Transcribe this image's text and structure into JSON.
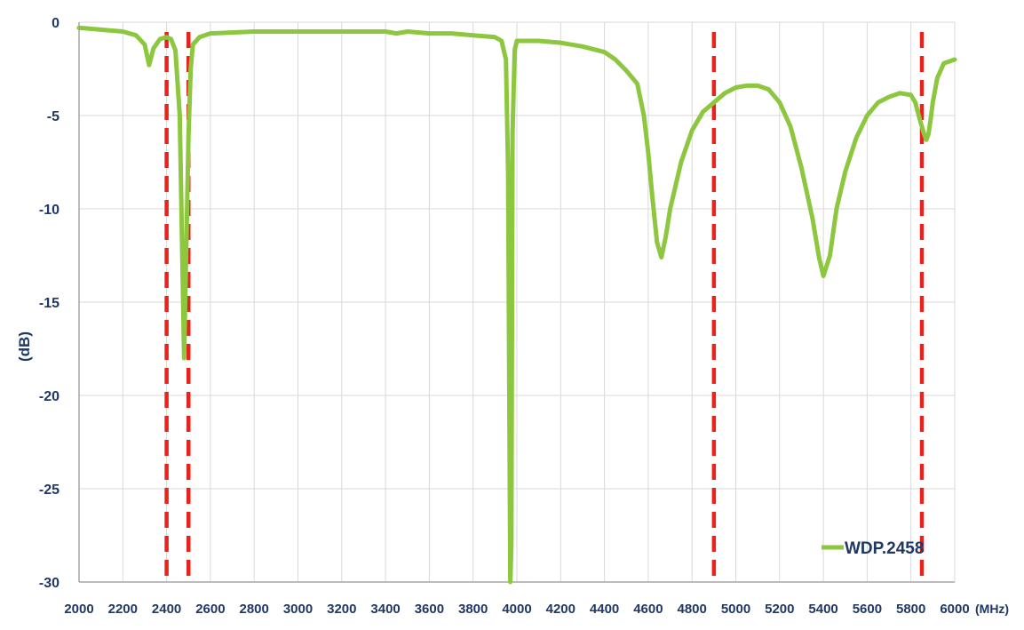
{
  "chart_data": {
    "type": "line",
    "xlabel": "(MHz)",
    "ylabel": "(dB)",
    "xlim": [
      2000,
      6000
    ],
    "ylim": [
      -30,
      0
    ],
    "x_ticks": [
      2000,
      2200,
      2400,
      2600,
      2800,
      3000,
      3200,
      3400,
      3600,
      3800,
      4000,
      4200,
      4400,
      4600,
      4800,
      5000,
      5200,
      5400,
      5600,
      5800,
      6000
    ],
    "x_tick_labels": [
      "2000",
      "2200",
      "2400",
      "2600",
      "2800",
      "3000",
      "3200",
      "3400",
      "3600",
      "3800",
      "4000",
      "4200",
      "4400",
      "4600",
      "4800",
      "5000",
      "5200",
      "5400",
      "5600",
      "5800",
      "6000"
    ],
    "y_ticks": [
      0,
      -5,
      -10,
      -15,
      -20,
      -25,
      -30
    ],
    "y_tick_labels": [
      "0",
      "-5",
      "-10",
      "-15",
      "-20",
      "-25",
      "-30"
    ],
    "grid": true,
    "legend_position": "bottom-right",
    "series": [
      {
        "name": "WDP.2458",
        "color": "#8dc63f",
        "x": [
          2000,
          2100,
          2200,
          2260,
          2300,
          2320,
          2340,
          2370,
          2400,
          2420,
          2440,
          2460,
          2480,
          2500,
          2510,
          2520,
          2550,
          2600,
          2800,
          3000,
          3200,
          3400,
          3450,
          3500,
          3600,
          3700,
          3800,
          3900,
          3930,
          3950,
          3960,
          3970,
          3975,
          3980,
          3990,
          4000,
          4050,
          4100,
          4200,
          4300,
          4400,
          4450,
          4500,
          4550,
          4580,
          4600,
          4620,
          4640,
          4660,
          4680,
          4700,
          4750,
          4800,
          4850,
          4900,
          4950,
          5000,
          5050,
          5100,
          5150,
          5200,
          5250,
          5300,
          5350,
          5380,
          5400,
          5430,
          5460,
          5500,
          5550,
          5600,
          5650,
          5700,
          5750,
          5800,
          5820,
          5840,
          5860,
          5870,
          5880,
          5890,
          5900,
          5920,
          5950,
          6000
        ],
        "y": [
          -0.3,
          -0.4,
          -0.5,
          -0.7,
          -1.2,
          -2.3,
          -1.4,
          -0.9,
          -0.8,
          -0.9,
          -1.5,
          -5.0,
          -18.0,
          -6.0,
          -2.5,
          -1.2,
          -0.8,
          -0.6,
          -0.5,
          -0.5,
          -0.5,
          -0.5,
          -0.6,
          -0.5,
          -0.6,
          -0.6,
          -0.7,
          -0.8,
          -1.0,
          -2.0,
          -8.0,
          -30.0,
          -28.0,
          -6.0,
          -1.5,
          -1.0,
          -1.0,
          -1.0,
          -1.1,
          -1.3,
          -1.6,
          -2.0,
          -2.6,
          -3.3,
          -5.0,
          -7.0,
          -9.5,
          -11.8,
          -12.6,
          -11.5,
          -10.0,
          -7.5,
          -5.8,
          -4.8,
          -4.3,
          -3.8,
          -3.5,
          -3.4,
          -3.4,
          -3.6,
          -4.3,
          -5.6,
          -7.8,
          -10.5,
          -12.6,
          -13.6,
          -12.5,
          -10.0,
          -8.0,
          -6.2,
          -5.0,
          -4.3,
          -4.0,
          -3.8,
          -3.9,
          -4.3,
          -5.2,
          -6.0,
          -6.3,
          -6.0,
          -5.2,
          -4.3,
          -3.0,
          -2.2,
          -2.0
        ]
      }
    ],
    "markers": {
      "color": "#e8231b",
      "x": [
        2400,
        2500,
        4900,
        5850
      ]
    }
  }
}
